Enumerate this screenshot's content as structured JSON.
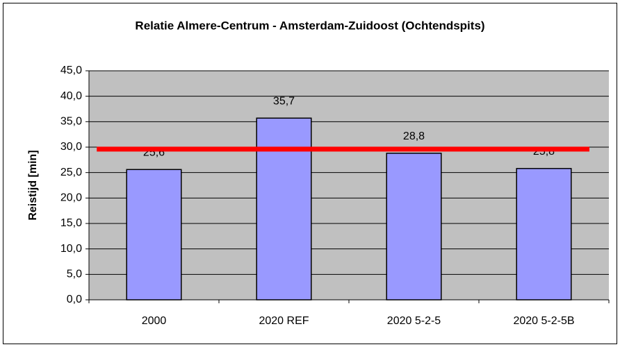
{
  "chart_data": {
    "type": "bar",
    "title": "Relatie Almere-Centrum - Amsterdam-Zuidoost (Ochtendspits)",
    "y_label": "Reistijd [min]",
    "categories": [
      "2000",
      "2020 REF",
      "2020 5-2-5",
      "2020 5-2-5B"
    ],
    "values": [
      25.6,
      35.7,
      28.8,
      25.8
    ],
    "value_labels": [
      "25,6",
      "35,7",
      "28,8",
      "25,8"
    ],
    "color": "#9999ff",
    "reference_line": {
      "value": 29.6,
      "color": "#ff0000"
    },
    "ylim": [
      0,
      45
    ],
    "yticks": [
      {
        "value": 0,
        "label": "0,0"
      },
      {
        "value": 5,
        "label": "5,0"
      },
      {
        "value": 10,
        "label": "10,0"
      },
      {
        "value": 15,
        "label": "15,0"
      },
      {
        "value": 20,
        "label": "20,0"
      },
      {
        "value": 25,
        "label": "25,0"
      },
      {
        "value": 30,
        "label": "30,0"
      },
      {
        "value": 35,
        "label": "35,0"
      },
      {
        "value": 40,
        "label": "40,0"
      },
      {
        "value": 45,
        "label": "45,0"
      }
    ],
    "grid": true
  }
}
